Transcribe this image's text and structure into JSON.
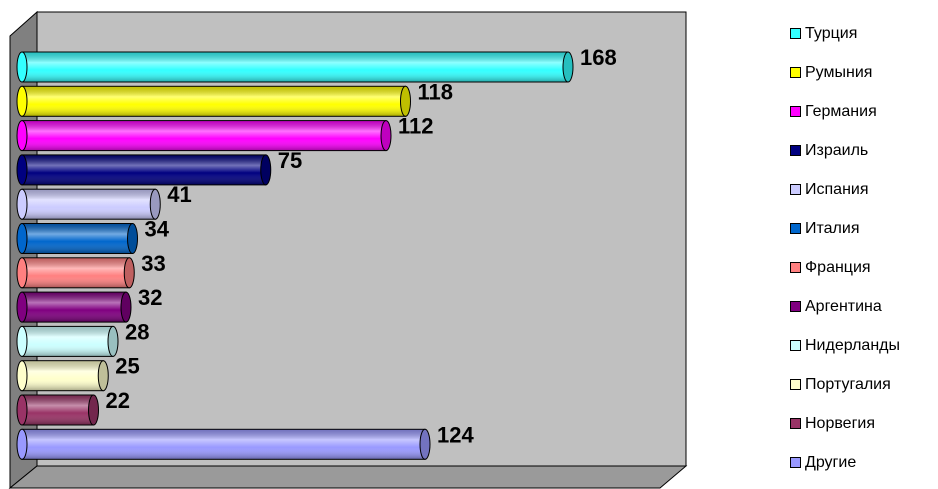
{
  "chart_data": {
    "type": "bar",
    "orientation": "horizontal",
    "style": "3d-cylinder",
    "categories": [
      "Турция",
      "Румыния",
      "Германия",
      "Израиль",
      "Испания",
      "Италия",
      "Франция",
      "Аргентина",
      "Нидерланды",
      "Португалия",
      "Норвегия",
      "Другие"
    ],
    "values": [
      168,
      118,
      112,
      75,
      41,
      34,
      33,
      32,
      28,
      25,
      22,
      124
    ],
    "data_labels": [
      "168",
      "118",
      "112",
      "75",
      "41",
      "34",
      "33",
      "32",
      "28",
      "25",
      "22",
      "124"
    ],
    "colors": [
      "#33ffff",
      "#ffff00",
      "#ff00ff",
      "#000080",
      "#ccccff",
      "#0066cc",
      "#ff8080",
      "#800080",
      "#ccffff",
      "#ffffcc",
      "#993366",
      "#9999ff"
    ],
    "xlim": [
      0,
      200
    ],
    "grid": false,
    "legend": "right",
    "wall_color": "#c0c0c0"
  }
}
